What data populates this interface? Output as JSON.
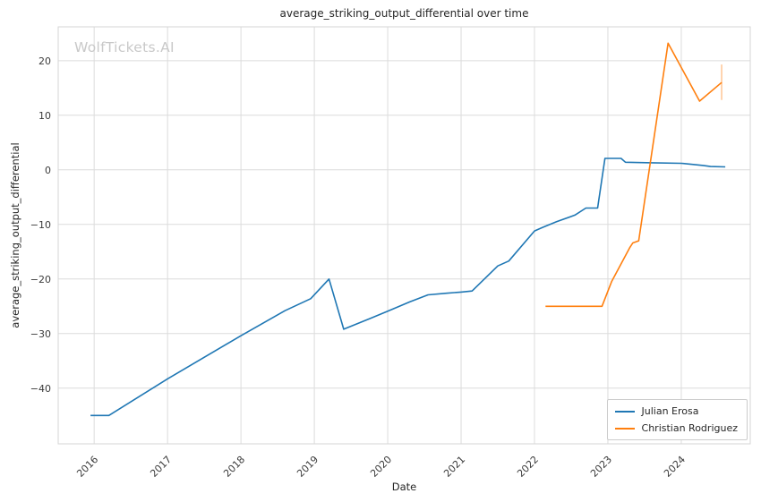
{
  "title": "average_striking_output_differential over time",
  "watermark": "WolfTickets.AI",
  "axes": {
    "xlabel": "Date",
    "ylabel": "average_striking_output_differential"
  },
  "legend": {
    "items": [
      {
        "label": "Julian Erosa"
      },
      {
        "label": "Christian Rodriguez"
      }
    ]
  },
  "colors": {
    "series_blue": "#1f77b4",
    "series_orange": "#ff7f0e",
    "grid": "#dcdcdc",
    "frame": "#d6d6d6",
    "tick_text": "#3b3b3b"
  },
  "chart_data": {
    "type": "line",
    "title": "average_striking_output_differential over time",
    "xlabel": "Date",
    "ylabel": "average_striking_output_differential",
    "xlim": [
      2015.51,
      2024.94
    ],
    "ylim": [
      -50.2,
      26.2
    ],
    "x_ticks": [
      2016,
      2017,
      2018,
      2019,
      2020,
      2021,
      2022,
      2023,
      2024
    ],
    "y_ticks": [
      -40,
      -30,
      -20,
      -10,
      0,
      10,
      20
    ],
    "grid": true,
    "legend_position": "lower right",
    "series": [
      {
        "name": "Julian Erosa",
        "color": "#1f77b4",
        "points": [
          [
            2015.95,
            -45.0
          ],
          [
            2016.2,
            -45.0
          ],
          [
            2017.0,
            -38.3
          ],
          [
            2018.0,
            -30.4
          ],
          [
            2018.6,
            -25.8
          ],
          [
            2018.95,
            -23.6
          ],
          [
            2019.2,
            -20.0
          ],
          [
            2019.4,
            -29.2
          ],
          [
            2019.75,
            -27.3
          ],
          [
            2020.0,
            -25.9
          ],
          [
            2020.3,
            -24.2
          ],
          [
            2020.55,
            -22.9
          ],
          [
            2020.8,
            -22.6
          ],
          [
            2021.0,
            -22.4
          ],
          [
            2021.15,
            -22.2
          ],
          [
            2021.5,
            -17.6
          ],
          [
            2021.65,
            -16.7
          ],
          [
            2022.0,
            -11.2
          ],
          [
            2022.1,
            -10.6
          ],
          [
            2022.3,
            -9.5
          ],
          [
            2022.55,
            -8.3
          ],
          [
            2022.7,
            -7.0
          ],
          [
            2022.86,
            -7.0
          ],
          [
            2022.96,
            2.1
          ],
          [
            2023.18,
            2.1
          ],
          [
            2023.24,
            1.4
          ],
          [
            2023.6,
            1.3
          ],
          [
            2024.0,
            1.2
          ],
          [
            2024.15,
            1.0
          ],
          [
            2024.3,
            0.8
          ],
          [
            2024.4,
            0.6
          ],
          [
            2024.6,
            0.55
          ]
        ]
      },
      {
        "name": "Christian Rodriguez",
        "color": "#ff7f0e",
        "points": [
          [
            2022.15,
            -25.0
          ],
          [
            2022.92,
            -25.0
          ],
          [
            2023.05,
            -20.5
          ],
          [
            2023.3,
            -14.2
          ],
          [
            2023.34,
            -13.4
          ],
          [
            2023.42,
            -13.0
          ],
          [
            2023.82,
            23.2
          ],
          [
            2024.25,
            12.6
          ],
          [
            2024.55,
            16.0
          ]
        ]
      }
    ],
    "annotations": [
      {
        "type": "vline",
        "x": 2024.55,
        "y_from": 12.8,
        "y_to": 19.3,
        "color": "#ffc99a"
      }
    ]
  }
}
